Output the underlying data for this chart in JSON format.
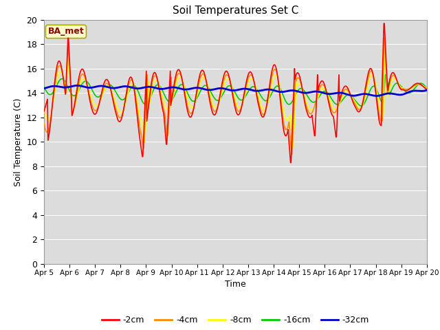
{
  "title": "Soil Temperatures Set C",
  "xlabel": "Time",
  "ylabel": "Soil Temperature (C)",
  "ylim": [
    0,
    20
  ],
  "yticks": [
    0,
    2,
    4,
    6,
    8,
    10,
    12,
    14,
    16,
    18,
    20
  ],
  "x_labels": [
    "Apr 5",
    "Apr 6",
    "Apr 7",
    "Apr 8",
    "Apr 9",
    "Apr 10",
    "Apr 11",
    "Apr 12",
    "Apr 13",
    "Apr 14",
    "Apr 15",
    "Apr 16",
    "Apr 17",
    "Apr 18",
    "Apr 19",
    "Apr 20"
  ],
  "colors": {
    "-2cm": "#ff0000",
    "-4cm": "#ff8c00",
    "-8cm": "#ffff00",
    "-16cm": "#00cc00",
    "-32cm": "#0000cc"
  },
  "legend_label": "BA_met",
  "plot_bg": "#dcdcdc",
  "fig_bg": "#ffffff",
  "grid_color": "#ffffff",
  "annot_fc": "#ffffcc",
  "annot_ec": "#aaaa00",
  "annot_tc": "#8b0000"
}
